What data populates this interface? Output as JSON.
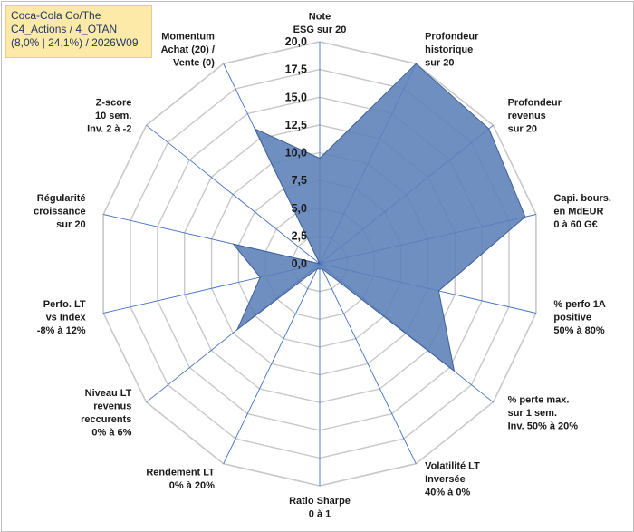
{
  "title": {
    "lines": [
      "Coca-Cola Co/The",
      "C4_Actions / 4_OTAN",
      "(8,0% | 24,1%) / 2026W09"
    ],
    "background": "#fde9a8",
    "text_color": "#1f3864"
  },
  "chart_data": {
    "type": "radar",
    "title": "Coca-Cola Co/The C4_Actions / 4_OTAN (8,0% | 24,1%) / 2026W09",
    "r_range": [
      0,
      20
    ],
    "ticks": [
      0,
      2.5,
      5,
      7.5,
      10,
      12.5,
      15,
      17.5,
      20
    ],
    "tick_labels": [
      "0,0",
      "2,5",
      "5,0",
      "7,5",
      "10,0",
      "12,5",
      "15,0",
      "17,5",
      "20,0"
    ],
    "grid": true,
    "fill_color": "#5b7fb8",
    "axes": [
      {
        "label": [
          "Note",
          "ESG sur 20"
        ],
        "value": 9.5
      },
      {
        "label": [
          "Profondeur",
          "historique",
          "sur 20"
        ],
        "value": 20.0
      },
      {
        "label": [
          "Profondeur",
          "revenus",
          "sur 20"
        ],
        "value": 19.5
      },
      {
        "label": [
          "Capi. bours.",
          "en MdEUR",
          "0 à 60 G€"
        ],
        "value": 19.0
      },
      {
        "label": [
          "% perfo 1A",
          "positive",
          "50% à 80%"
        ],
        "value": 11.0
      },
      {
        "label": [
          "% perte max.",
          "sur 1 sem.",
          "Inv. 50% à 20%"
        ],
        "value": 15.5
      },
      {
        "label": [
          "Volatilité LT",
          "Inversée",
          "40% à 0%"
        ],
        "value": 0.5
      },
      {
        "label": [
          "Ratio Sharpe",
          "0 à 1"
        ],
        "value": 0.5
      },
      {
        "label": [
          "Rendement LT",
          "0% à 20%"
        ],
        "value": 0.5
      },
      {
        "label": [
          "Niveau LT",
          "revenus",
          "reccurents",
          "0% à 6%"
        ],
        "value": 9.5
      },
      {
        "label": [
          "Perfo. LT",
          "vs Index",
          "-8% à 12%"
        ],
        "value": 5.5
      },
      {
        "label": [
          "Régularité",
          "croissance",
          "sur 20"
        ],
        "value": 8.0
      },
      {
        "label": [
          "Z-score",
          "10 sem.",
          "Inv. 2 à -2"
        ],
        "value": 0.0
      },
      {
        "label": [
          "Momentum",
          "Achat (20) /",
          "Vente (0)"
        ],
        "value": 13.5
      }
    ]
  }
}
